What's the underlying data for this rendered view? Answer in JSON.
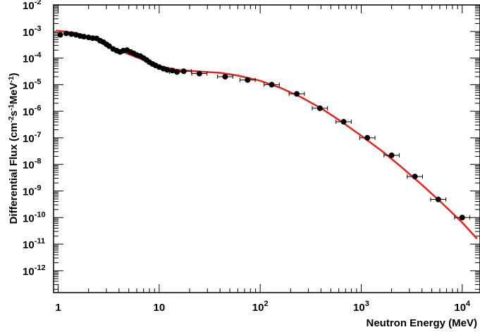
{
  "chart_data": {
    "type": "scatter",
    "title": "",
    "xlabel": "Neutron  Energy (MeV)",
    "ylabel_base": "Differential Flux (cm",
    "ylabel_sup1": "-2",
    "ylabel_mid1": "s",
    "ylabel_sup2": "-1",
    "ylabel_mid2": "MeV",
    "ylabel_sup3": "-1",
    "ylabel_end": ")",
    "x_scale": "log",
    "y_scale": "log",
    "xlim": [
      0.9,
      15000
    ],
    "ylim": [
      1.5e-13,
      0.01
    ],
    "x_ticks": [
      {
        "value": 1,
        "base": "1",
        "exp": ""
      },
      {
        "value": 10,
        "base": "10",
        "exp": ""
      },
      {
        "value": 100,
        "base": "10",
        "exp": "2"
      },
      {
        "value": 1000,
        "base": "10",
        "exp": "3"
      },
      {
        "value": 10000,
        "base": "10",
        "exp": "4"
      }
    ],
    "y_ticks": [
      {
        "value": 0.01,
        "base": "10",
        "exp": "-2"
      },
      {
        "value": 0.001,
        "base": "10",
        "exp": "-3"
      },
      {
        "value": 0.0001,
        "base": "10",
        "exp": "-4"
      },
      {
        "value": 1e-05,
        "base": "10",
        "exp": "-5"
      },
      {
        "value": 1e-06,
        "base": "10",
        "exp": "-6"
      },
      {
        "value": 1e-07,
        "base": "10",
        "exp": "-7"
      },
      {
        "value": 1e-08,
        "base": "10",
        "exp": "-8"
      },
      {
        "value": 1e-09,
        "base": "10",
        "exp": "-9"
      },
      {
        "value": 1e-10,
        "base": "10",
        "exp": "-10"
      },
      {
        "value": 1e-11,
        "base": "10",
        "exp": "-11"
      },
      {
        "value": 1e-12,
        "base": "10",
        "exp": "-12"
      }
    ],
    "grid": false,
    "legend": "none",
    "series": [
      {
        "kind": "points",
        "color": "#000000",
        "points": [
          {
            "x": 1.05,
            "y": 0.00075
          },
          {
            "x": 1.2,
            "y": 0.00085
          },
          {
            "x": 1.35,
            "y": 0.0008
          },
          {
            "x": 1.5,
            "y": 0.00075
          },
          {
            "x": 1.65,
            "y": 0.00068
          },
          {
            "x": 1.8,
            "y": 0.00064
          },
          {
            "x": 2.0,
            "y": 0.0006
          },
          {
            "x": 2.2,
            "y": 0.00056
          },
          {
            "x": 2.4,
            "y": 0.00055
          },
          {
            "x": 2.6,
            "y": 0.00045
          },
          {
            "x": 2.8,
            "y": 0.0004
          },
          {
            "x": 3.0,
            "y": 0.00033
          },
          {
            "x": 3.2,
            "y": 0.00028
          },
          {
            "x": 3.5,
            "y": 0.00022
          },
          {
            "x": 3.8,
            "y": 0.00019
          },
          {
            "x": 4.1,
            "y": 0.00017
          },
          {
            "x": 4.4,
            "y": 0.00019
          },
          {
            "x": 4.8,
            "y": 0.0002
          },
          {
            "x": 5.2,
            "y": 0.00017
          },
          {
            "x": 5.6,
            "y": 0.00015
          },
          {
            "x": 6.0,
            "y": 0.00013
          },
          {
            "x": 6.5,
            "y": 0.00012
          },
          {
            "x": 7.0,
            "y": 0.0001
          },
          {
            "x": 7.5,
            "y": 8.5e-05
          },
          {
            "x": 8.0,
            "y": 7e-05
          },
          {
            "x": 8.6,
            "y": 6e-05
          },
          {
            "x": 9.2,
            "y": 5.3e-05
          },
          {
            "x": 10.0,
            "y": 4.6e-05
          },
          {
            "x": 11.0,
            "y": 4e-05
          },
          {
            "x": 12.0,
            "y": 3.6e-05
          },
          {
            "x": 13.5,
            "y": 3.4e-05
          },
          {
            "x": 15.0,
            "y": 3e-05
          },
          {
            "x": 17.5,
            "y": 3.2e-05
          },
          {
            "x": 25.0,
            "y": 2.6e-05
          },
          {
            "x": 45.0,
            "y": 2e-05
          },
          {
            "x": 75.0,
            "y": 1.5e-05
          },
          {
            "x": 130.0,
            "y": 1e-05
          },
          {
            "x": 230.0,
            "y": 4.5e-06
          },
          {
            "x": 390.0,
            "y": 1.3e-06
          },
          {
            "x": 670.0,
            "y": 4e-07
          },
          {
            "x": 1150.0,
            "y": 1e-07
          },
          {
            "x": 2000.0,
            "y": 2.2e-08
          },
          {
            "x": 3400.0,
            "y": 3.5e-09
          },
          {
            "x": 5800.0,
            "y": 4.8e-10
          },
          {
            "x": 10000.0,
            "y": 1e-10
          }
        ]
      },
      {
        "kind": "fit-line",
        "color": "#e8231e",
        "points": [
          {
            "x": 0.95,
            "y": 0.00108
          },
          {
            "x": 1.5,
            "y": 0.00088
          },
          {
            "x": 2.0,
            "y": 0.00062
          },
          {
            "x": 2.5,
            "y": 0.00045
          },
          {
            "x": 3.0,
            "y": 0.00032
          },
          {
            "x": 4.0,
            "y": 0.0002
          },
          {
            "x": 5.0,
            "y": 0.00014
          },
          {
            "x": 7.0,
            "y": 8.5e-05
          },
          {
            "x": 10.0,
            "y": 5e-05
          },
          {
            "x": 15.0,
            "y": 3.6e-05
          },
          {
            "x": 25.0,
            "y": 3.1e-05
          },
          {
            "x": 40.0,
            "y": 2.8e-05
          },
          {
            "x": 60.0,
            "y": 2.2e-05
          },
          {
            "x": 100.0,
            "y": 1.4e-05
          },
          {
            "x": 160.0,
            "y": 7.5e-06
          },
          {
            "x": 250.0,
            "y": 3.5e-06
          },
          {
            "x": 400.0,
            "y": 1.3e-06
          },
          {
            "x": 630.0,
            "y": 4.2e-07
          },
          {
            "x": 1000.0,
            "y": 1.2e-07
          },
          {
            "x": 1600.0,
            "y": 3.2e-08
          },
          {
            "x": 2500.0,
            "y": 8e-09
          },
          {
            "x": 4000.0,
            "y": 1.7e-09
          },
          {
            "x": 6300.0,
            "y": 3.5e-10
          },
          {
            "x": 10000.0,
            "y": 6.5e-11
          },
          {
            "x": 14000.0,
            "y": 1.6e-11
          }
        ]
      }
    ]
  }
}
